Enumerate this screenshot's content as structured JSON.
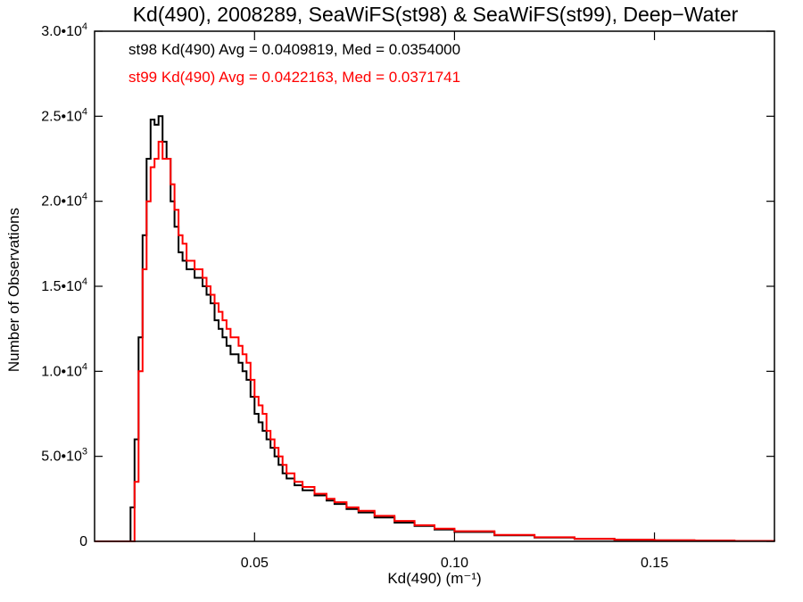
{
  "chart_data": {
    "type": "line",
    "title": "Kd(490), 2008289, SeaWiFS(st98) & SeaWiFS(st99), Deep−Water",
    "xlabel": "Kd(490) (m⁻¹)",
    "ylabel": "Number of Observations",
    "xlim": [
      0.01,
      0.18
    ],
    "ylim": [
      0,
      30000
    ],
    "x_ticks": [
      {
        "value": 0.05,
        "label": "0.05"
      },
      {
        "value": 0.1,
        "label": "0.10"
      },
      {
        "value": 0.15,
        "label": "0.15"
      }
    ],
    "y_ticks": [
      {
        "value": 0,
        "label": "0",
        "exp": ""
      },
      {
        "value": 5000,
        "label": "5.0•10",
        "exp": "3"
      },
      {
        "value": 10000,
        "label": "1.0•10",
        "exp": "4"
      },
      {
        "value": 15000,
        "label": "1.5•10",
        "exp": "4"
      },
      {
        "value": 20000,
        "label": "2.0•10",
        "exp": "4"
      },
      {
        "value": 25000,
        "label": "2.5•10",
        "exp": "4"
      },
      {
        "value": 30000,
        "label": "3.0•10",
        "exp": "4"
      }
    ],
    "annotations": [
      {
        "text": "st98 Kd(490) Avg = 0.0409819, Med = 0.0354000",
        "color": "#000000"
      },
      {
        "text": "st99 Kd(490) Avg = 0.0422163, Med = 0.0371741",
        "color": "#ff0000"
      }
    ],
    "style": "step",
    "grid": false,
    "series": [
      {
        "name": "st98",
        "color": "#000000",
        "points": [
          [
            0.01,
            0
          ],
          [
            0.016,
            0
          ],
          [
            0.018,
            0
          ],
          [
            0.019,
            2000
          ],
          [
            0.02,
            6000
          ],
          [
            0.021,
            12000
          ],
          [
            0.022,
            18000
          ],
          [
            0.023,
            22500
          ],
          [
            0.024,
            24800
          ],
          [
            0.025,
            24500
          ],
          [
            0.026,
            25000
          ],
          [
            0.027,
            23500
          ],
          [
            0.028,
            22500
          ],
          [
            0.029,
            20000
          ],
          [
            0.03,
            18500
          ],
          [
            0.031,
            17000
          ],
          [
            0.032,
            16500
          ],
          [
            0.033,
            16000
          ],
          [
            0.034,
            16000
          ],
          [
            0.035,
            15500
          ],
          [
            0.036,
            15500
          ],
          [
            0.037,
            15000
          ],
          [
            0.038,
            14500
          ],
          [
            0.039,
            14000
          ],
          [
            0.04,
            13000
          ],
          [
            0.041,
            12500
          ],
          [
            0.042,
            12000
          ],
          [
            0.043,
            11500
          ],
          [
            0.044,
            11000
          ],
          [
            0.045,
            11000
          ],
          [
            0.046,
            10500
          ],
          [
            0.047,
            10000
          ],
          [
            0.048,
            9500
          ],
          [
            0.049,
            8500
          ],
          [
            0.05,
            7500
          ],
          [
            0.051,
            7000
          ],
          [
            0.052,
            6500
          ],
          [
            0.053,
            6000
          ],
          [
            0.054,
            5500
          ],
          [
            0.055,
            5000
          ],
          [
            0.056,
            4500
          ],
          [
            0.057,
            4000
          ],
          [
            0.058,
            3700
          ],
          [
            0.06,
            3300
          ],
          [
            0.062,
            3000
          ],
          [
            0.065,
            2700
          ],
          [
            0.068,
            2400
          ],
          [
            0.07,
            2200
          ],
          [
            0.073,
            1900
          ],
          [
            0.076,
            1700
          ],
          [
            0.08,
            1400
          ],
          [
            0.085,
            1100
          ],
          [
            0.09,
            900
          ],
          [
            0.095,
            700
          ],
          [
            0.1,
            550
          ],
          [
            0.11,
            350
          ],
          [
            0.12,
            220
          ],
          [
            0.13,
            140
          ],
          [
            0.14,
            90
          ],
          [
            0.15,
            60
          ],
          [
            0.16,
            40
          ],
          [
            0.17,
            25
          ],
          [
            0.18,
            15
          ]
        ]
      },
      {
        "name": "st99",
        "color": "#ff0000",
        "points": [
          [
            0.01,
            0
          ],
          [
            0.016,
            0
          ],
          [
            0.019,
            0
          ],
          [
            0.02,
            3500
          ],
          [
            0.021,
            10000
          ],
          [
            0.022,
            16000
          ],
          [
            0.023,
            20000
          ],
          [
            0.024,
            22000
          ],
          [
            0.025,
            22500
          ],
          [
            0.026,
            23500
          ],
          [
            0.027,
            22500
          ],
          [
            0.028,
            22500
          ],
          [
            0.029,
            21000
          ],
          [
            0.03,
            19500
          ],
          [
            0.031,
            18000
          ],
          [
            0.032,
            17500
          ],
          [
            0.033,
            16500
          ],
          [
            0.034,
            16500
          ],
          [
            0.035,
            16000
          ],
          [
            0.036,
            16000
          ],
          [
            0.037,
            15500
          ],
          [
            0.038,
            15000
          ],
          [
            0.039,
            14500
          ],
          [
            0.04,
            14000
          ],
          [
            0.041,
            13500
          ],
          [
            0.042,
            13000
          ],
          [
            0.043,
            12500
          ],
          [
            0.044,
            12000
          ],
          [
            0.045,
            12000
          ],
          [
            0.046,
            11500
          ],
          [
            0.047,
            11000
          ],
          [
            0.048,
            10500
          ],
          [
            0.049,
            9500
          ],
          [
            0.05,
            8500
          ],
          [
            0.051,
            8000
          ],
          [
            0.052,
            7500
          ],
          [
            0.053,
            6500
          ],
          [
            0.054,
            6000
          ],
          [
            0.055,
            5500
          ],
          [
            0.056,
            5000
          ],
          [
            0.057,
            4500
          ],
          [
            0.058,
            4000
          ],
          [
            0.06,
            3500
          ],
          [
            0.062,
            3200
          ],
          [
            0.065,
            2800
          ],
          [
            0.068,
            2500
          ],
          [
            0.07,
            2300
          ],
          [
            0.073,
            2000
          ],
          [
            0.076,
            1800
          ],
          [
            0.08,
            1500
          ],
          [
            0.085,
            1200
          ],
          [
            0.09,
            950
          ],
          [
            0.095,
            750
          ],
          [
            0.1,
            600
          ],
          [
            0.11,
            380
          ],
          [
            0.12,
            240
          ],
          [
            0.13,
            150
          ],
          [
            0.14,
            95
          ],
          [
            0.15,
            65
          ],
          [
            0.16,
            45
          ],
          [
            0.17,
            28
          ],
          [
            0.18,
            18
          ]
        ]
      }
    ]
  }
}
